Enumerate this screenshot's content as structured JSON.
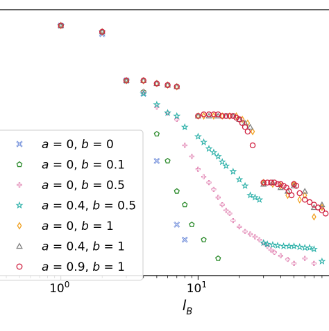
{
  "chart_data": {
    "type": "scatter",
    "title": "",
    "xlabel": "l_B",
    "ylabel": "",
    "x_scale": "log",
    "y_scale": "log",
    "xlim": [
      0.36,
      90
    ],
    "ylim": [
      0.003,
      1.6
    ],
    "x_ticks": [
      {
        "value": 1,
        "label": "10^0",
        "base": "10",
        "exp": "0"
      },
      {
        "value": 10,
        "label": "10^1",
        "base": "10",
        "exp": "1"
      }
    ],
    "grid": false,
    "legend_position": "lower-left",
    "series": [
      {
        "name": "a = 0, b = 0",
        "label_parts": [
          "a",
          " = 0, ",
          "b",
          " = 0"
        ],
        "marker": "x",
        "color": "#4a6fd0",
        "points": [
          [
            1,
            1.1
          ],
          [
            2,
            0.9
          ],
          [
            3,
            0.3
          ],
          [
            4,
            0.22
          ],
          [
            5,
            0.045
          ],
          [
            7,
            0.01
          ],
          [
            8,
            0.007
          ]
        ]
      },
      {
        "name": "a = 0, b = 0.1",
        "label_parts": [
          "a",
          " = 0, ",
          "b",
          " = 0.1"
        ],
        "marker": "pentagon",
        "color": "#2a8a2a",
        "points": [
          [
            1,
            1.1
          ],
          [
            2,
            0.95
          ],
          [
            3,
            0.3
          ],
          [
            4,
            0.23
          ],
          [
            5,
            0.085
          ],
          [
            6,
            0.045
          ],
          [
            7,
            0.022
          ],
          [
            8,
            0.016
          ],
          [
            9,
            0.01
          ],
          [
            11,
            0.007
          ],
          [
            14,
            0.0045
          ]
        ]
      },
      {
        "name": "a = 0, b = 0.5",
        "label_parts": [
          "a",
          " = 0, ",
          "b",
          " = 0.5"
        ],
        "marker": "plus",
        "color": "#e080b0",
        "points": [
          [
            1,
            1.1
          ],
          [
            2,
            0.95
          ],
          [
            3,
            0.3
          ],
          [
            4,
            0.23
          ],
          [
            5,
            0.16
          ],
          [
            6,
            0.14
          ],
          [
            7,
            0.12
          ],
          [
            8,
            0.065
          ],
          [
            9,
            0.05
          ],
          [
            10,
            0.037
          ],
          [
            11,
            0.031
          ],
          [
            12,
            0.027
          ],
          [
            13,
            0.023
          ],
          [
            14,
            0.019
          ],
          [
            15,
            0.016
          ],
          [
            16,
            0.014
          ],
          [
            17,
            0.013
          ],
          [
            18,
            0.011
          ],
          [
            20,
            0.0095
          ],
          [
            22,
            0.0085
          ],
          [
            24,
            0.008
          ],
          [
            26,
            0.0075
          ],
          [
            28,
            0.007
          ],
          [
            30,
            0.0065
          ],
          [
            32,
            0.006
          ],
          [
            34,
            0.0055
          ],
          [
            36,
            0.0052
          ],
          [
            40,
            0.0048
          ],
          [
            45,
            0.0044
          ],
          [
            50,
            0.004
          ],
          [
            60,
            0.0045
          ],
          [
            70,
            0.004
          ]
        ]
      },
      {
        "name": "a = 0.4, b = 0.5",
        "label_parts": [
          "a",
          " = 0.4, ",
          "b",
          " = 0.5"
        ],
        "marker": "star",
        "color": "#2ab0a8",
        "points": [
          [
            1,
            1.1
          ],
          [
            2,
            0.95
          ],
          [
            3,
            0.3
          ],
          [
            4,
            0.22
          ],
          [
            5,
            0.17
          ],
          [
            6,
            0.14
          ],
          [
            7,
            0.13
          ],
          [
            8,
            0.1
          ],
          [
            10,
            0.08
          ],
          [
            11,
            0.07
          ],
          [
            12,
            0.06
          ],
          [
            13,
            0.055
          ],
          [
            14,
            0.05
          ],
          [
            15,
            0.044
          ],
          [
            16,
            0.04
          ],
          [
            18,
            0.035
          ],
          [
            20,
            0.029
          ],
          [
            22,
            0.025
          ],
          [
            24,
            0.02
          ],
          [
            26,
            0.019
          ],
          [
            28,
            0.018
          ],
          [
            30,
            0.0065
          ],
          [
            32,
            0.0063
          ],
          [
            35,
            0.0062
          ],
          [
            38,
            0.0061
          ],
          [
            42,
            0.006
          ],
          [
            46,
            0.006
          ],
          [
            50,
            0.006
          ],
          [
            55,
            0.0059
          ],
          [
            60,
            0.0058
          ],
          [
            65,
            0.0058
          ],
          [
            70,
            0.0056
          ],
          [
            80,
            0.0042
          ]
        ]
      },
      {
        "name": "a = 0, b = 1",
        "label_parts": [
          "a",
          " = 0, ",
          "b",
          " = 1"
        ],
        "marker": "diamond",
        "color": "#f0a020",
        "points": [
          [
            1,
            1.1
          ],
          [
            2,
            0.95
          ],
          [
            3,
            0.3
          ],
          [
            4,
            0.3
          ],
          [
            5,
            0.28
          ],
          [
            6,
            0.27
          ],
          [
            7,
            0.26
          ],
          [
            10,
            0.13
          ],
          [
            11,
            0.13
          ],
          [
            13,
            0.13
          ],
          [
            15,
            0.13
          ],
          [
            17,
            0.13
          ],
          [
            19,
            0.13
          ],
          [
            21,
            0.12
          ],
          [
            23,
            0.11
          ],
          [
            25,
            0.09
          ],
          [
            30,
            0.027
          ],
          [
            35,
            0.026
          ],
          [
            40,
            0.025
          ],
          [
            45,
            0.02
          ],
          [
            50,
            0.026
          ],
          [
            55,
            0.018
          ],
          [
            60,
            0.02
          ],
          [
            70,
            0.012
          ],
          [
            80,
            0.015
          ]
        ]
      },
      {
        "name": "a = 0.4, b = 1",
        "label_parts": [
          "a",
          " = 0.4, ",
          "b",
          " = 1"
        ],
        "marker": "triangle",
        "color": "#808080",
        "points": [
          [
            1,
            1.1
          ],
          [
            2,
            0.95
          ],
          [
            3,
            0.3
          ],
          [
            4,
            0.3
          ],
          [
            5,
            0.28
          ],
          [
            6,
            0.27
          ],
          [
            7,
            0.26
          ],
          [
            10,
            0.13
          ],
          [
            12,
            0.13
          ],
          [
            14,
            0.13
          ],
          [
            16,
            0.13
          ],
          [
            18,
            0.13
          ],
          [
            20,
            0.12
          ],
          [
            22,
            0.11
          ],
          [
            24,
            0.1
          ],
          [
            30,
            0.026
          ],
          [
            35,
            0.027
          ],
          [
            40,
            0.024
          ],
          [
            45,
            0.022
          ],
          [
            50,
            0.025
          ],
          [
            60,
            0.022
          ],
          [
            70,
            0.015
          ],
          [
            80,
            0.016
          ]
        ]
      },
      {
        "name": "a = 0.9, b = 1",
        "label_parts": [
          "a",
          " = 0.9, ",
          "b",
          " = 1"
        ],
        "marker": "circle",
        "color": "#d02040",
        "points": [
          [
            1,
            1.1
          ],
          [
            2,
            0.95
          ],
          [
            3,
            0.3
          ],
          [
            4,
            0.3
          ],
          [
            5,
            0.28
          ],
          [
            6,
            0.27
          ],
          [
            7,
            0.26
          ],
          [
            10,
            0.13
          ],
          [
            11,
            0.135
          ],
          [
            12,
            0.135
          ],
          [
            13,
            0.135
          ],
          [
            14,
            0.135
          ],
          [
            15,
            0.13
          ],
          [
            16,
            0.13
          ],
          [
            17,
            0.13
          ],
          [
            18,
            0.13
          ],
          [
            19,
            0.125
          ],
          [
            20,
            0.12
          ],
          [
            21,
            0.11
          ],
          [
            22,
            0.1
          ],
          [
            23,
            0.09
          ],
          [
            25,
            0.065
          ],
          [
            30,
            0.027
          ],
          [
            32,
            0.027
          ],
          [
            34,
            0.027
          ],
          [
            36,
            0.027
          ],
          [
            38,
            0.026
          ],
          [
            40,
            0.026
          ],
          [
            42,
            0.025
          ],
          [
            44,
            0.024
          ],
          [
            46,
            0.022
          ],
          [
            48,
            0.02
          ],
          [
            50,
            0.026
          ],
          [
            52,
            0.025
          ],
          [
            55,
            0.021
          ],
          [
            60,
            0.018
          ],
          [
            65,
            0.017
          ],
          [
            70,
            0.016
          ],
          [
            75,
            0.015
          ],
          [
            80,
            0.014
          ],
          [
            85,
            0.013
          ]
        ]
      }
    ]
  }
}
